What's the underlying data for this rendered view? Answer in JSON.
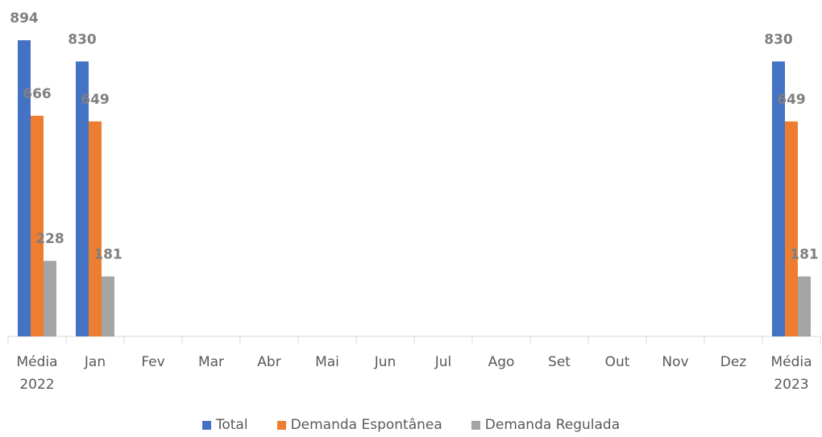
{
  "chart_data": {
    "type": "bar",
    "categories": [
      "Média 2022",
      "Jan",
      "Fev",
      "Mar",
      "Abr",
      "Mai",
      "Jun",
      "Jul",
      "Ago",
      "Set",
      "Out",
      "Nov",
      "Dez",
      "Média 2023"
    ],
    "series": [
      {
        "name": "Total",
        "color": "#4472c4",
        "values": [
          894,
          830,
          null,
          null,
          null,
          null,
          null,
          null,
          null,
          null,
          null,
          null,
          null,
          830
        ]
      },
      {
        "name": "Demanda Espontânea",
        "color": "#ed7d31",
        "values": [
          666,
          649,
          null,
          null,
          null,
          null,
          null,
          null,
          null,
          null,
          null,
          null,
          null,
          649
        ]
      },
      {
        "name": "Demanda Regulada",
        "color": "#a5a5a5",
        "values": [
          228,
          181,
          null,
          null,
          null,
          null,
          null,
          null,
          null,
          null,
          null,
          null,
          null,
          181
        ]
      }
    ],
    "legend": "bottom"
  }
}
